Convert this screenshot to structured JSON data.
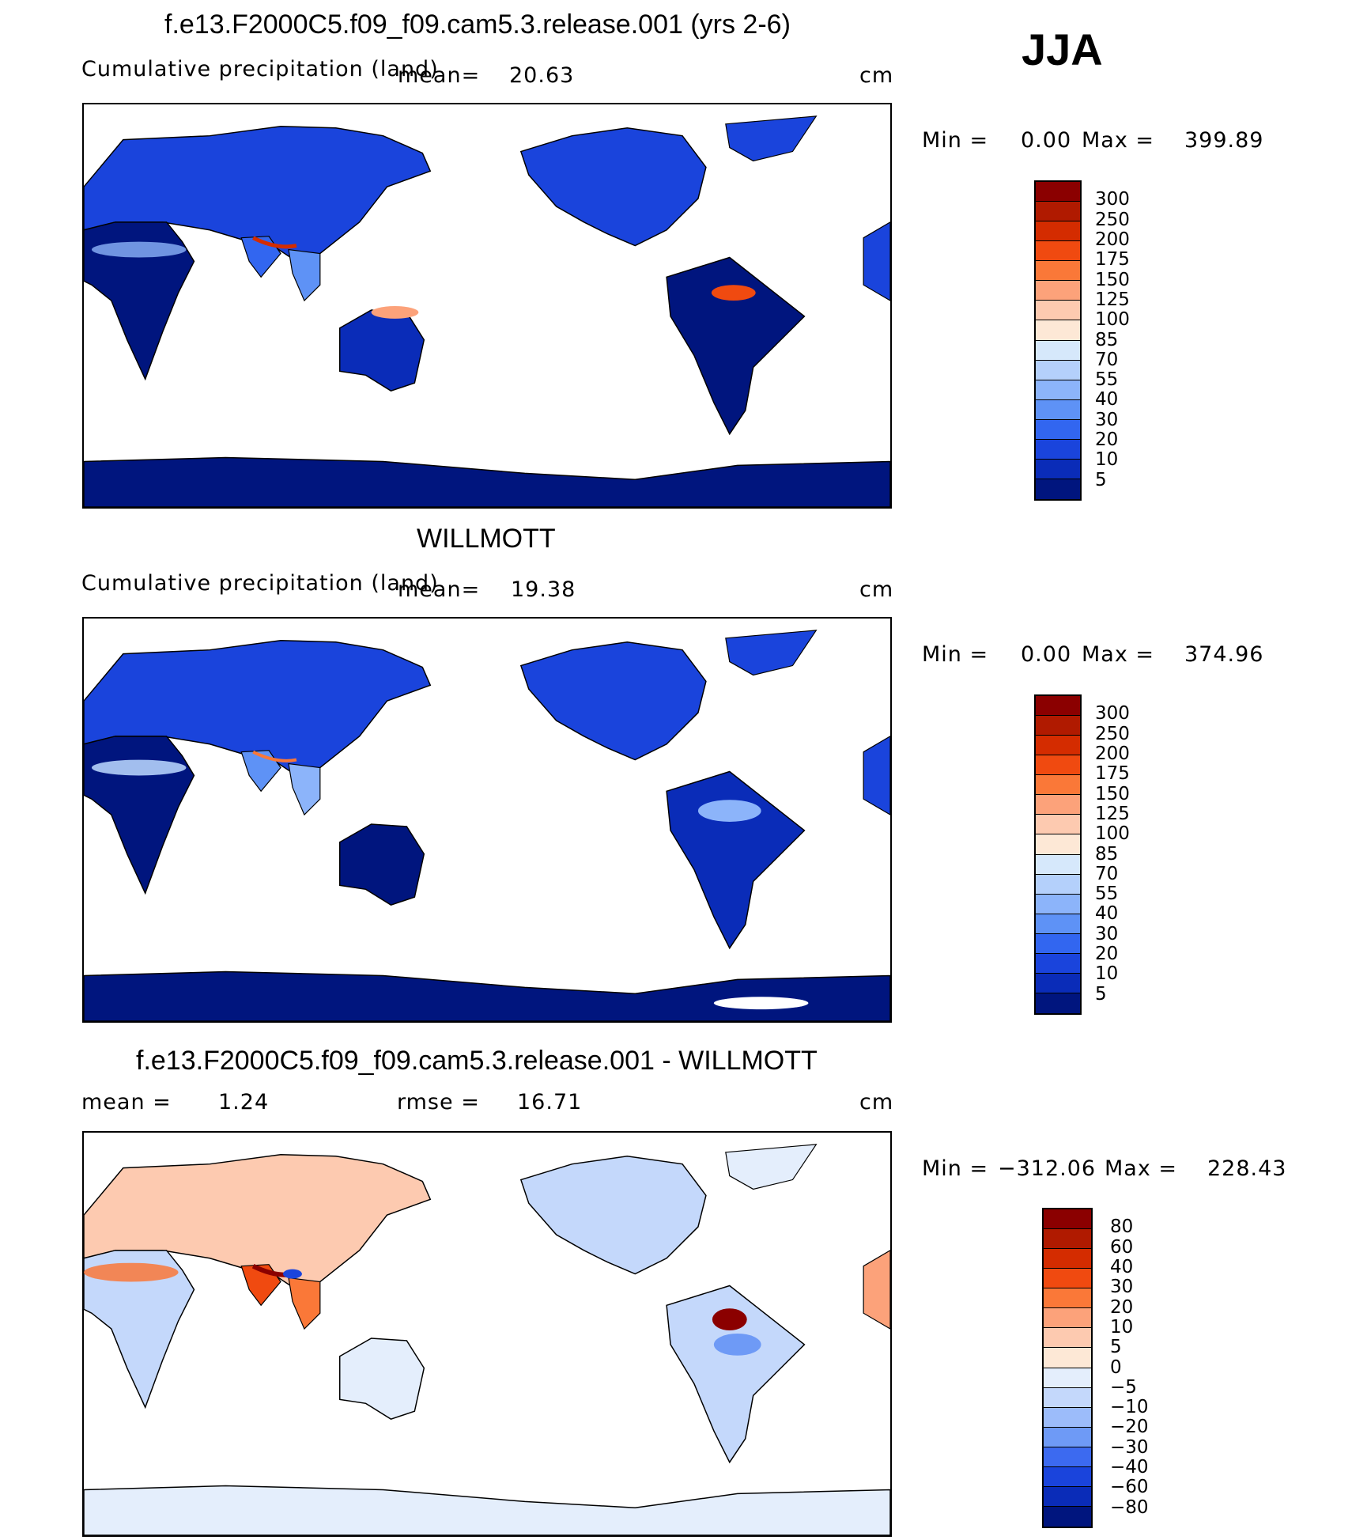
{
  "season": "JJA",
  "panels": [
    {
      "id": "model",
      "title": "f.e13.F2000C5.f09_f09.cam5.3.release.001 (yrs 2-6)",
      "left_label": "Cumulative precipitation (land)",
      "mean_label": "mean=",
      "mean_value": "20.63",
      "units": "cm",
      "min_label": "Min  =",
      "min_value": "0.00",
      "max_label": "Max  =",
      "max_value": "399.89",
      "colorbar_labels": [
        "300",
        "250",
        "200",
        "175",
        "150",
        "125",
        "100",
        "85",
        "70",
        "55",
        "40",
        "30",
        "20",
        "10",
        "5"
      ],
      "colorbar_colors": [
        "#8b0000",
        "#b01a00",
        "#d42c00",
        "#f04a10",
        "#fa7838",
        "#fca27a",
        "#fdcab0",
        "#fde8d6",
        "#d6e8fb",
        "#b4d0fb",
        "#8cb4fa",
        "#5e92f6",
        "#3266f0",
        "#1a44dc",
        "#0a2cb8",
        "#00157e"
      ]
    },
    {
      "id": "obs",
      "title": "WILLMOTT",
      "left_label": "Cumulative precipitation (land)",
      "mean_label": "mean=",
      "mean_value": "19.38",
      "units": "cm",
      "min_label": "Min  =",
      "min_value": "0.00",
      "max_label": "Max  =",
      "max_value": "374.96",
      "colorbar_labels": [
        "300",
        "250",
        "200",
        "175",
        "150",
        "125",
        "100",
        "85",
        "70",
        "55",
        "40",
        "30",
        "20",
        "10",
        "5"
      ],
      "colorbar_colors": [
        "#8b0000",
        "#b01a00",
        "#d42c00",
        "#f04a10",
        "#fa7838",
        "#fca27a",
        "#fdcab0",
        "#fde8d6",
        "#d6e8fb",
        "#b4d0fb",
        "#8cb4fa",
        "#5e92f6",
        "#3266f0",
        "#1a44dc",
        "#0a2cb8",
        "#00157e"
      ]
    },
    {
      "id": "diff",
      "title": "f.e13.F2000C5.f09_f09.cam5.3.release.001 - WILLMOTT",
      "mean_label": "mean  =",
      "mean_value": "1.24",
      "rmse_label": "rmse  =",
      "rmse_value": "16.71",
      "units": "cm",
      "min_label": "Min  =",
      "min_value": "−312.06",
      "max_label": "Max  =",
      "max_value": "228.43",
      "colorbar_labels": [
        "80",
        "60",
        "40",
        "30",
        "20",
        "10",
        "5",
        "0",
        "−5",
        "−10",
        "−20",
        "−30",
        "−40",
        "−60",
        "−80"
      ],
      "colorbar_colors": [
        "#8b0000",
        "#b01a00",
        "#d42c00",
        "#f04a10",
        "#fa7838",
        "#fca27a",
        "#fdcab0",
        "#fde8d6",
        "#e4eefc",
        "#c4d8fb",
        "#9cbcfa",
        "#6e9af6",
        "#3c6af0",
        "#1a44dc",
        "#0a2cb8",
        "#00157e"
      ]
    }
  ]
}
